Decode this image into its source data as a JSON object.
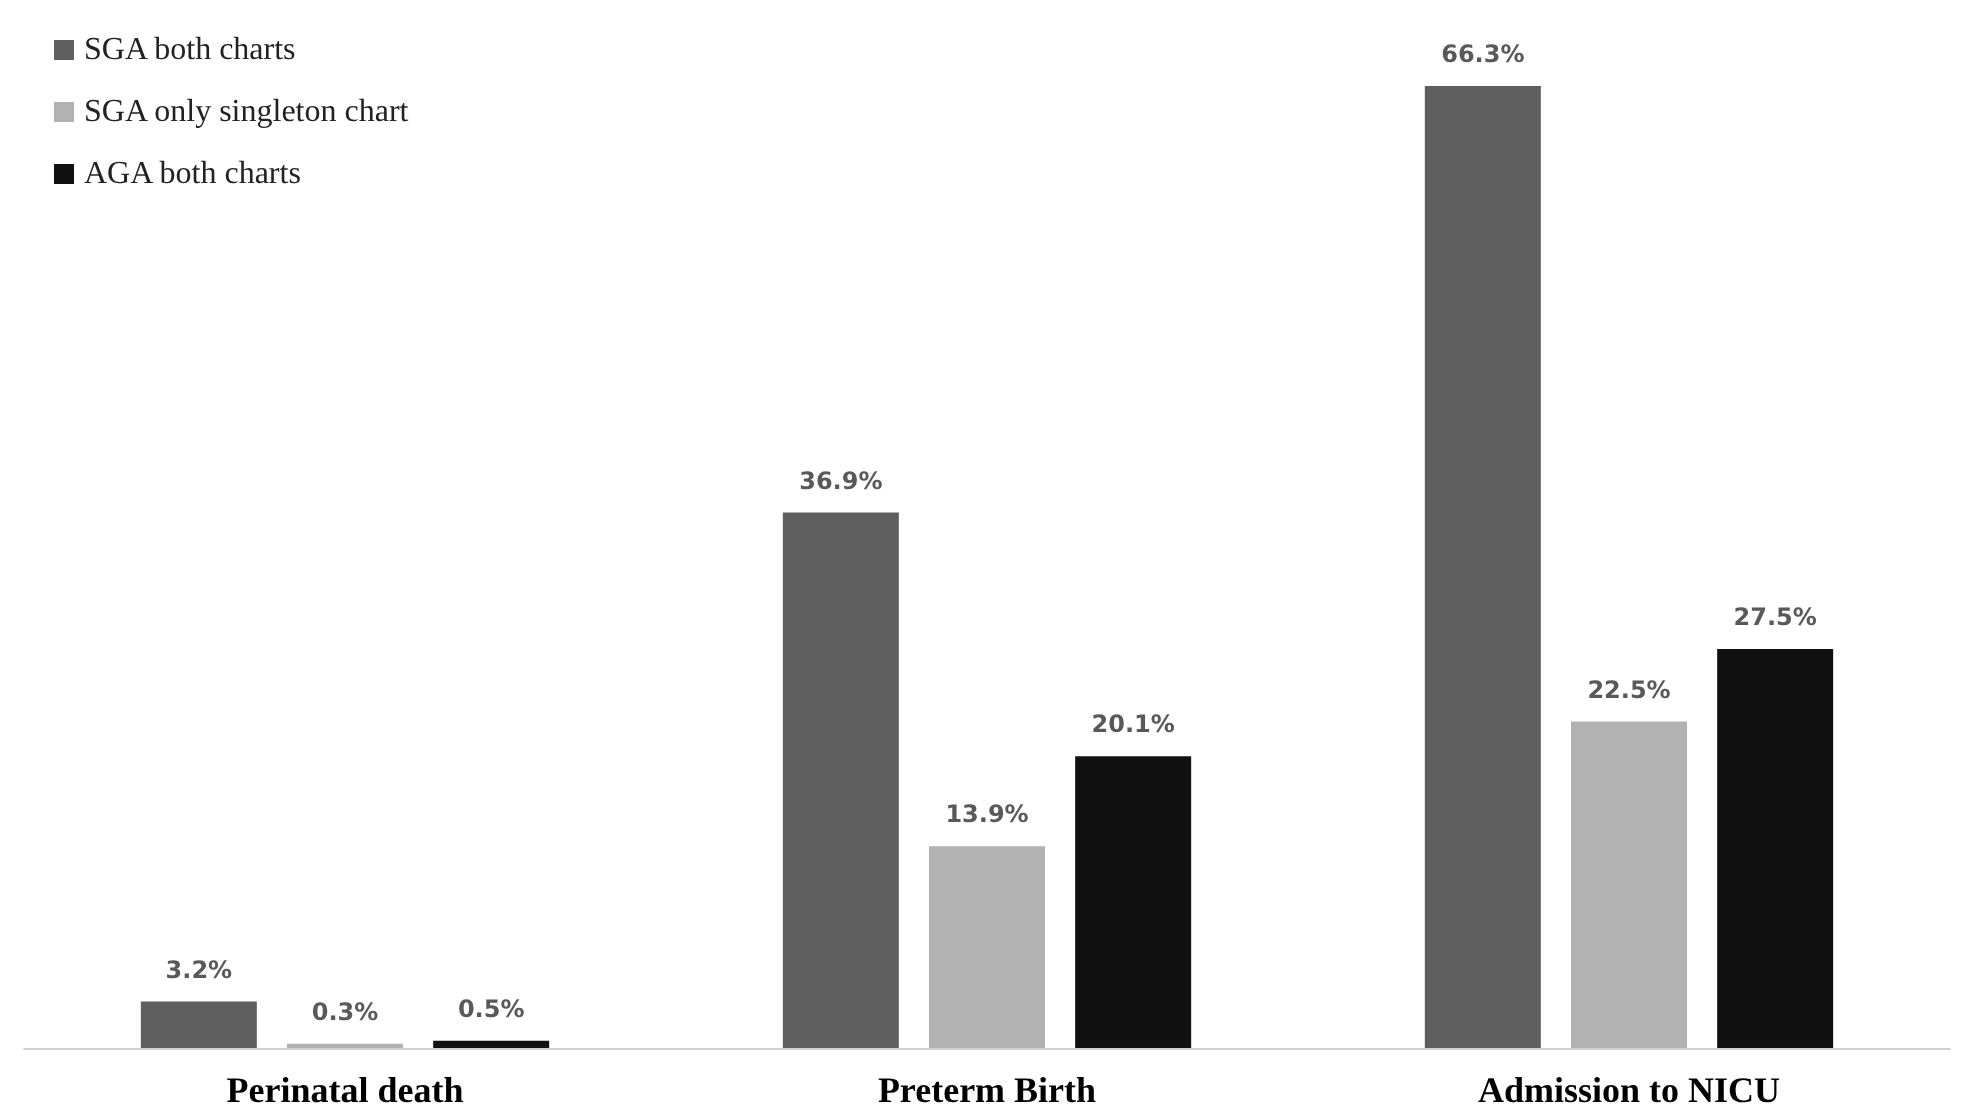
{
  "chart_data": {
    "type": "bar",
    "categories": [
      "Perinatal death",
      "Preterm Birth",
      "Admission to NICU"
    ],
    "series": [
      {
        "name": "SGA both charts",
        "color": "#5f5f5f",
        "values": [
          3.2,
          36.9,
          66.3
        ],
        "value_labels": [
          "3.2%",
          "36.9%",
          "66.3%"
        ]
      },
      {
        "name": "SGA only singleton chart",
        "color": "#b2b2b2",
        "values": [
          0.3,
          13.9,
          22.5
        ],
        "value_labels": [
          "0.3%",
          "13.9%",
          "22.5%"
        ]
      },
      {
        "name": "AGA both charts",
        "color": "#111111",
        "values": [
          0.5,
          20.1,
          27.5
        ],
        "value_labels": [
          "0.5%",
          "20.1%",
          "27.5%"
        ]
      }
    ],
    "legend": "top left",
    "grid": false,
    "tick_labels": "x"
  }
}
